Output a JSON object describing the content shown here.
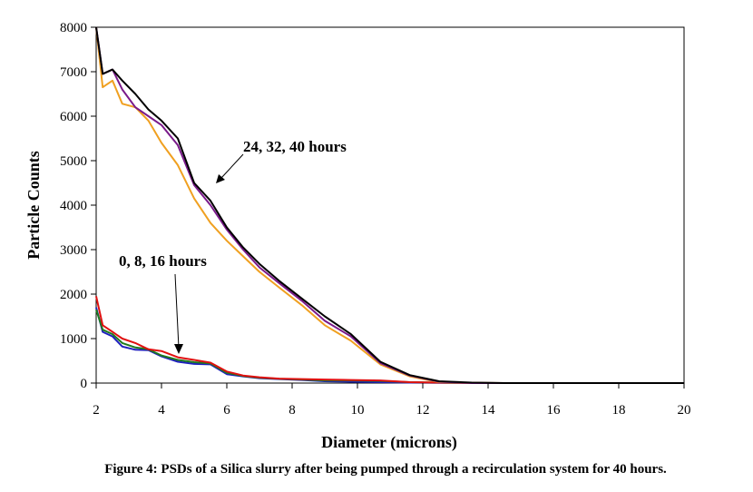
{
  "chart_data": {
    "type": "line",
    "title": "",
    "xlabel": "Diameter (microns)",
    "ylabel": "Particle Counts",
    "xlim": [
      2,
      20
    ],
    "ylim": [
      0,
      8000
    ],
    "xticks": [
      2,
      4,
      6,
      8,
      10,
      12,
      14,
      16,
      18,
      20
    ],
    "yticks": [
      0,
      1000,
      2000,
      3000,
      4000,
      5000,
      6000,
      7000,
      8000
    ],
    "grid": false,
    "legend": "none",
    "caption": "Figure 4: PSDs of a Silica slurry after being pumped through a recirculation system for 40 hours.",
    "annotations": [
      {
        "text": "24, 32, 40 hours",
        "points_to": [
          5.5,
          4400
        ]
      },
      {
        "text": "0, 8, 16 hours",
        "points_to": [
          4.5,
          600
        ]
      }
    ],
    "x": [
      2.0,
      2.2,
      2.5,
      2.8,
      3.2,
      3.6,
      4.0,
      4.5,
      5.0,
      5.5,
      6.0,
      6.5,
      7.0,
      7.6,
      8.3,
      9.0,
      9.8,
      10.7,
      11.6,
      12.5,
      13.5,
      14.5,
      15.6,
      16.8,
      18.1,
      20.0
    ],
    "series": [
      {
        "name": "0 hours",
        "color": "#1f1fbf",
        "values": [
          1700,
          1150,
          1050,
          820,
          750,
          740,
          600,
          480,
          430,
          420,
          200,
          150,
          110,
          90,
          70,
          40,
          30,
          20,
          10,
          5,
          0,
          0,
          0,
          0,
          0,
          0
        ]
      },
      {
        "name": "8 hours",
        "color": "#1e7a1e",
        "values": [
          1650,
          1200,
          1100,
          900,
          800,
          760,
          620,
          520,
          470,
          440,
          230,
          160,
          120,
          95,
          80,
          60,
          60,
          50,
          20,
          10,
          5,
          0,
          0,
          0,
          0,
          0
        ]
      },
      {
        "name": "16 hours",
        "color": "#e01010",
        "values": [
          1950,
          1300,
          1150,
          1000,
          900,
          760,
          720,
          580,
          520,
          460,
          260,
          170,
          130,
          100,
          90,
          80,
          70,
          60,
          20,
          10,
          5,
          0,
          0,
          0,
          0,
          0
        ]
      },
      {
        "name": "24 hours",
        "color": "#f0a020",
        "values": [
          8000,
          6650,
          6800,
          6280,
          6200,
          5900,
          5400,
          4900,
          4150,
          3600,
          3200,
          2850,
          2500,
          2150,
          1750,
          1300,
          950,
          420,
          150,
          20,
          0,
          0,
          0,
          0,
          0,
          0
        ]
      },
      {
        "name": "32 hours",
        "color": "#7a1a8a",
        "values": [
          8000,
          6950,
          7050,
          6600,
          6200,
          6000,
          5800,
          5350,
          4450,
          4000,
          3450,
          3000,
          2600,
          2250,
          1850,
          1400,
          1050,
          450,
          170,
          30,
          0,
          0,
          0,
          0,
          0,
          0
        ]
      },
      {
        "name": "40 hours",
        "color": "#000000",
        "values": [
          8000,
          6950,
          7050,
          6800,
          6500,
          6150,
          5900,
          5500,
          4500,
          4100,
          3500,
          3050,
          2680,
          2300,
          1900,
          1500,
          1100,
          480,
          180,
          40,
          10,
          0,
          0,
          0,
          0,
          0
        ]
      }
    ]
  }
}
